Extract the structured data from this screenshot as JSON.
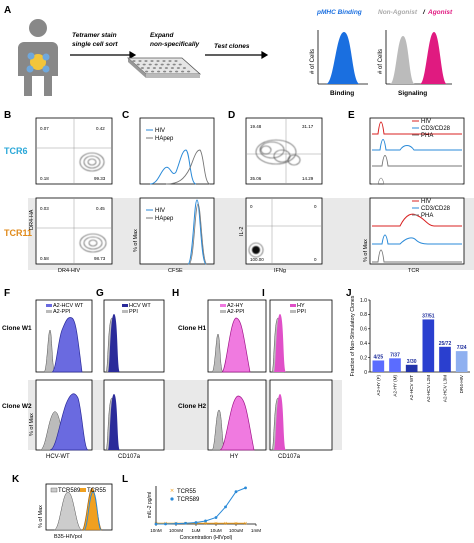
{
  "panels": {
    "A": "A",
    "B": "B",
    "C": "C",
    "D": "D",
    "E": "E",
    "F": "F",
    "G": "G",
    "H": "H",
    "I": "I",
    "J": "J",
    "K": "K",
    "L": "L"
  },
  "panelA": {
    "step1_line1": "Tetramer stain",
    "step1_line2": "single cell sort",
    "step2_line1": "Expand",
    "step2_line2": "non-specifically",
    "step3": "Test clones",
    "hist1_title": "pMHC Binding",
    "hist1_ylabel": "# of Cells",
    "hist1_xlabel": "Binding",
    "hist2_title_left": "Non-Agonist",
    "hist2_title_sep": "/",
    "hist2_title_right": "Agonist",
    "hist2_ylabel": "# of Cells",
    "hist2_xlabel": "Signaling",
    "colors": {
      "binding": "#1a6fe0",
      "nonagonist": "#bbbbbb",
      "agonist": "#e01a80"
    }
  },
  "rowlabels": {
    "tcr6": "TCR6",
    "tcr11": "TCR11",
    "tcr6_color": "#29a7d8",
    "tcr11_color": "#e08a1a"
  },
  "panelB": {
    "top": {
      "q_tl": "0.07",
      "q_tr": "0.42",
      "q_bl": "0.18",
      "q_br": "99.33"
    },
    "bottom": {
      "q_tl": "0.03",
      "q_tr": "0.45",
      "q_bl": "0.58",
      "q_br": "98.73"
    },
    "ylabel": "DR4-HA",
    "xlabel": "DR4-HIV"
  },
  "panelC": {
    "legend": [
      "HIV",
      "HApep"
    ],
    "ylabel": "% of Max",
    "xlabel": "CFSE"
  },
  "panelD": {
    "top": {
      "q_tl": "19.48",
      "q_tr": "31.17",
      "q_bl": "35.06",
      "q_br": "14.29"
    },
    "bottom": {
      "q_tl": "0",
      "q_tr": "0",
      "q_bl": "100.00",
      "q_br": "0"
    },
    "ylabel": "IL-2",
    "xlabel": "IFNg"
  },
  "panelE": {
    "legend": [
      "HIV",
      "CD3/CD28",
      "PHA"
    ],
    "ylabel": "% of Max",
    "xlabel": "TCR"
  },
  "rowF": {
    "clone_w1": "Clone W1",
    "clone_w2": "Clone W2",
    "clone_h1": "Clone H1",
    "clone_h2": "Clone H2"
  },
  "panelF": {
    "legend": [
      "A2-HCV WT",
      "A2-PPI"
    ],
    "ylabel": "% of Max",
    "xlabel": "HCV-WT"
  },
  "panelG": {
    "legend": [
      "HCV WT",
      "PPI"
    ],
    "xlabel": "CD107a"
  },
  "panelH": {
    "legend": [
      "A2-HY",
      "A2-PPI"
    ],
    "xlabel": "HY"
  },
  "panelI": {
    "legend": [
      "HY",
      "PPI"
    ],
    "xlabel": "CD107a"
  },
  "chart_data": [
    {
      "type": "bar",
      "ylabel": "Fraction of Non-Stimulatory Clones",
      "ylim": [
        0,
        1
      ],
      "yticks": [
        "0",
        "0.2",
        "0.4",
        "0.6",
        "0.8",
        "1.0"
      ],
      "categories": [
        "A2-HY (F)",
        "A2-HY (M)",
        "A2-HCV WT",
        "A2-HCV L2M",
        "A2-HCV L3M",
        "DR4-HIV"
      ],
      "values": [
        0.16,
        0.19,
        0.1,
        0.73,
        0.35,
        0.29
      ],
      "labels": [
        "4/25",
        "7/37",
        "3/30",
        "37/51",
        "25/72",
        "7/24"
      ],
      "colors": [
        "#5b6cff",
        "#5b6cff",
        "#2233aa",
        "#2a3fcf",
        "#2a3fcf",
        "#8fb0f0"
      ]
    },
    {
      "type": "line",
      "xlabel": "Concentration (HIVpol)",
      "ylabel": "mIL-2 pg/ml",
      "xticks": [
        "10nM",
        "100nM",
        "1uM",
        "10uM",
        "100uM",
        "1mM"
      ],
      "series": [
        {
          "name": "TCR55",
          "color": "#f0a020",
          "x": [
            1e-08,
            3e-08,
            1e-07,
            3e-07,
            1e-06,
            3e-06,
            1e-05,
            3e-05,
            0.0001,
            0.0003
          ],
          "y": [
            0.02,
            0.02,
            0.02,
            0.02,
            0.02,
            0.02,
            0.02,
            0.02,
            0.02,
            0.02
          ]
        },
        {
          "name": "TCR589",
          "color": "#2a8ad8",
          "x": [
            1e-08,
            3e-08,
            1e-07,
            3e-07,
            1e-06,
            3e-06,
            1e-05,
            3e-05,
            0.0001,
            0.0003
          ],
          "y": [
            0.0,
            0.0,
            0.01,
            0.02,
            0.04,
            0.08,
            0.17,
            0.45,
            0.85,
            0.95
          ]
        }
      ]
    }
  ],
  "panelK": {
    "legend": [
      "TCR589",
      "TCR55"
    ],
    "ylabel": "% of Max",
    "xlabel": "B35-HIVpol"
  },
  "panelL": {
    "legend": [
      "TCR55",
      "TCR589"
    ]
  }
}
